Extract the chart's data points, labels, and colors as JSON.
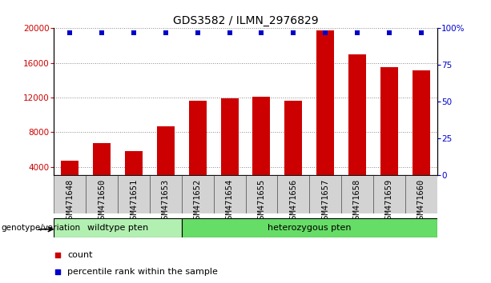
{
  "title": "GDS3582 / ILMN_2976829",
  "categories": [
    "GSM471648",
    "GSM471650",
    "GSM471651",
    "GSM471653",
    "GSM471652",
    "GSM471654",
    "GSM471655",
    "GSM471656",
    "GSM471657",
    "GSM471658",
    "GSM471659",
    "GSM471660"
  ],
  "counts": [
    4700,
    6700,
    5800,
    8700,
    11600,
    11900,
    12100,
    11600,
    19800,
    17000,
    15500,
    15100
  ],
  "percentile_values": [
    97,
    97,
    97,
    97,
    97,
    97,
    97,
    97,
    97,
    97,
    97,
    97
  ],
  "bar_color": "#cc0000",
  "dot_color": "#0000cc",
  "ylim_left": [
    3000,
    20000
  ],
  "ylim_right": [
    0,
    100
  ],
  "yticks_left": [
    4000,
    8000,
    12000,
    16000,
    20000
  ],
  "yticks_right": [
    0,
    25,
    50,
    75,
    100
  ],
  "group1_label": "wildtype pten",
  "group2_label": "heterozygous pten",
  "group1_count": 4,
  "group2_count": 8,
  "genotype_label": "genotype/variation",
  "legend_count_label": "count",
  "legend_pct_label": "percentile rank within the sample",
  "grid_color": "#888888",
  "bg_color_xticklabels": "#d3d3d3",
  "group1_bg": "#b2f0b2",
  "group2_bg": "#66dd66",
  "title_fontsize": 10,
  "tick_fontsize": 7.5,
  "label_fontsize": 8
}
